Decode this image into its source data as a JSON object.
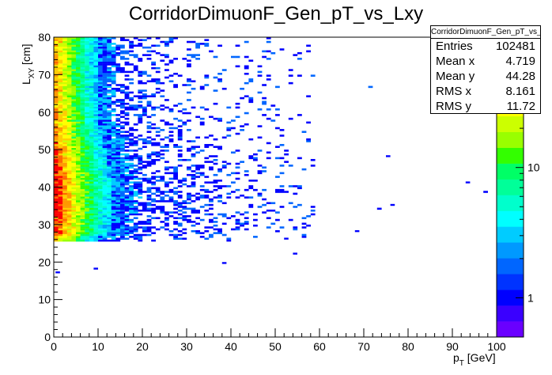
{
  "title": "CorridorDimuonF_Gen_pT_vs_Lxy",
  "stats": {
    "name": "CorridorDimuonF_Gen_pT_vs_Lxy",
    "rows": [
      {
        "label": "Entries",
        "value": "102481"
      },
      {
        "label": "Mean x",
        "value": "4.719"
      },
      {
        "label": "Mean y",
        "value": "44.28"
      },
      {
        "label": "RMS x",
        "value": "8.161"
      },
      {
        "label": "RMS y",
        "value": "11.72"
      }
    ]
  },
  "chart_data": {
    "type": "heatmap",
    "title": "CorridorDimuonF_Gen_pT_vs_Lxy",
    "xlabel": "p_T [GeV]",
    "ylabel": "L_XY [cm]",
    "xlim": [
      0,
      100
    ],
    "ylim": [
      0,
      80
    ],
    "xticks": [
      0,
      10,
      20,
      30,
      40,
      50,
      60,
      70,
      80,
      90,
      100
    ],
    "yticks": [
      0,
      10,
      20,
      30,
      40,
      50,
      60,
      70,
      80
    ],
    "z_scale": "log",
    "z_ticks": [
      "1",
      "10"
    ],
    "z_max_approx": 100,
    "entries": 102481,
    "mean_x": 4.719,
    "mean_y": 44.28,
    "rms_x": 8.161,
    "rms_y": 11.72,
    "density_description": "Counts concentrated at low pT (0-5 GeV) for Lxy 26-80 cm, highest near Lxy 30-45 cm; sparse tail extending to pT ~60 GeV with scattered outliers to ~95 GeV",
    "palette": [
      "#6a00ff",
      "#3a00ff",
      "#0000ff",
      "#0033ff",
      "#0066ff",
      "#0099ff",
      "#00ccff",
      "#00ffff",
      "#00ffcc",
      "#00ff99",
      "#00ff66",
      "#33ff00",
      "#99ff00",
      "#ccff00",
      "#ffff00",
      "#ffcc00",
      "#ff9900",
      "#ff6600",
      "#ff0000"
    ]
  }
}
